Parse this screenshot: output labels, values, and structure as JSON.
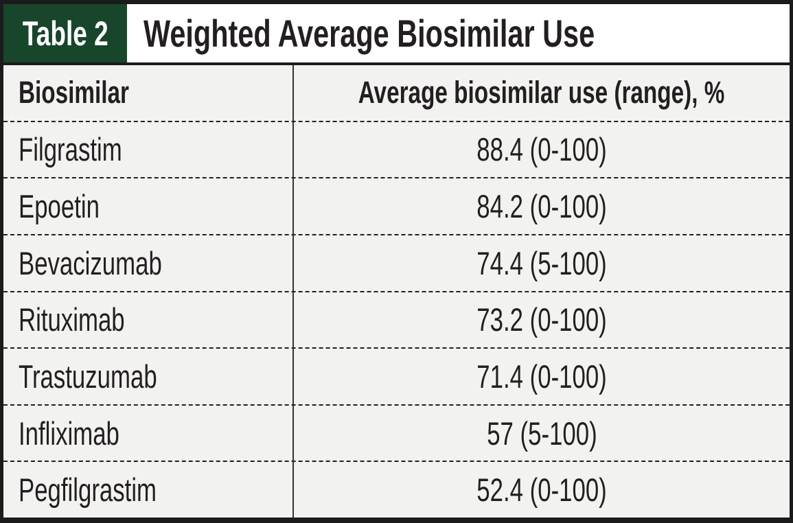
{
  "colors": {
    "label_box_green": "#17462a",
    "row_background": "#f2f2f0",
    "border_black": "#1b1b1b",
    "text": "#231f20"
  },
  "chart_data": {
    "type": "table",
    "label": "Table 2",
    "title": "Weighted Average Biosimilar Use",
    "columns": [
      "Biosimilar",
      "Average biosimilar use (range), %"
    ],
    "rows": [
      {
        "biosimilar": "Filgrastim",
        "value_display": "88.4 (0-100)",
        "average_pct": 88.4,
        "range": [
          0,
          100
        ]
      },
      {
        "biosimilar": "Epoetin",
        "value_display": "84.2 (0-100)",
        "average_pct": 84.2,
        "range": [
          0,
          100
        ]
      },
      {
        "biosimilar": "Bevacizumab",
        "value_display": "74.4 (5-100)",
        "average_pct": 74.4,
        "range": [
          5,
          100
        ]
      },
      {
        "biosimilar": "Rituximab",
        "value_display": "73.2 (0-100)",
        "average_pct": 73.2,
        "range": [
          0,
          100
        ]
      },
      {
        "biosimilar": "Trastuzumab",
        "value_display": "71.4 (0-100)",
        "average_pct": 71.4,
        "range": [
          0,
          100
        ]
      },
      {
        "biosimilar": "Infliximab",
        "value_display": "57 (5-100)",
        "average_pct": 57,
        "range": [
          5,
          100
        ]
      },
      {
        "biosimilar": "Pegfilgrastim",
        "value_display": "52.4 (0-100)",
        "average_pct": 52.4,
        "range": [
          0,
          100
        ]
      }
    ]
  }
}
